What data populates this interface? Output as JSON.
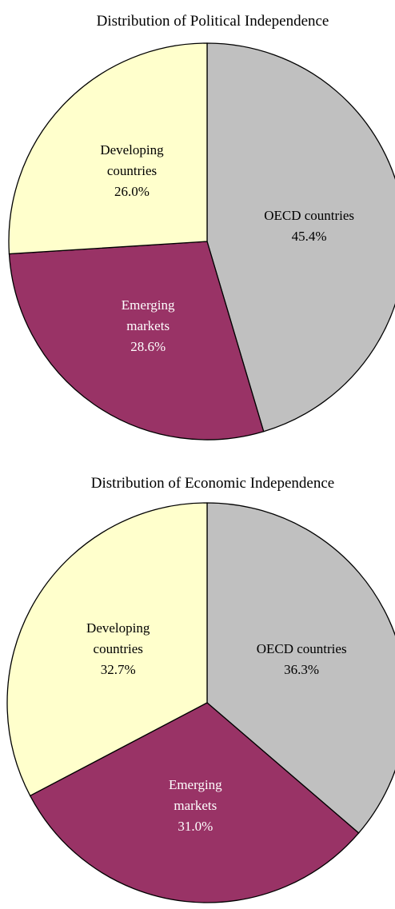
{
  "chart_data": [
    {
      "type": "pie",
      "title": "Distribution of Political Independence",
      "categories": [
        "OECD countries",
        "Emerging markets",
        "Developing countries"
      ],
      "values": [
        45.4,
        28.6,
        26.0
      ],
      "value_labels": [
        "45.4%",
        "28.6%",
        "26.0%"
      ],
      "colors": [
        "#c0c0c0",
        "#993366",
        "#ffffcc"
      ]
    },
    {
      "type": "pie",
      "title": "Distribution of Economic Independence",
      "categories": [
        "OECD countries",
        "Emerging markets",
        "Developing countries"
      ],
      "values": [
        36.3,
        31.0,
        32.7
      ],
      "value_labels": [
        "36.3%",
        "31.0%",
        "32.7%"
      ],
      "colors": [
        "#c0c0c0",
        "#993366",
        "#ffffcc"
      ]
    }
  ]
}
